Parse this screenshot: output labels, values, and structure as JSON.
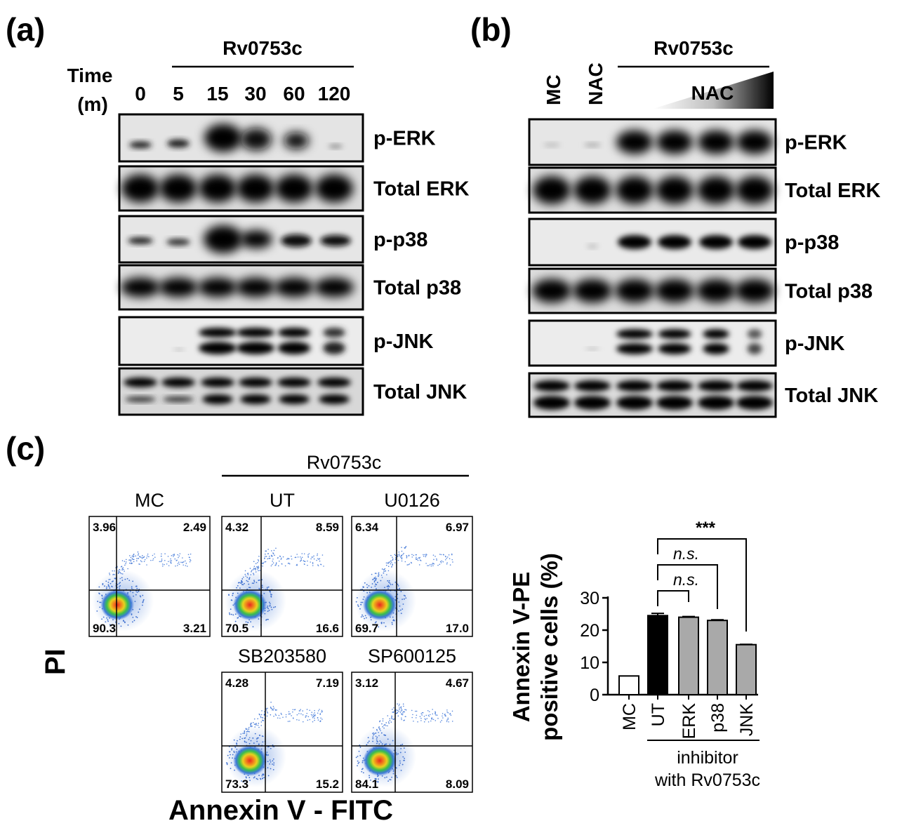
{
  "panel_a": {
    "label": "(a)",
    "treatment": "Rv0753c",
    "time_label_line1": "Time",
    "time_label_line2": "(m)",
    "times": [
      "0",
      "5",
      "15",
      "30",
      "60",
      "120"
    ],
    "blots": [
      "p-ERK",
      "Total ERK",
      "p-p38",
      "Total p38",
      "p-JNK",
      "Total JNK"
    ]
  },
  "panel_b": {
    "label": "(b)",
    "treatment": "Rv0753c",
    "lanes": [
      "MC",
      "NAC"
    ],
    "gradient_label": "NAC",
    "blots": [
      "p-ERK",
      "Total ERK",
      "p-p38",
      "Total p38",
      "p-JNK",
      "Total JNK"
    ]
  },
  "panel_c": {
    "label": "(c)",
    "treatment": "Rv0753c",
    "y_axis": "PI",
    "x_axis": "Annexin V - FITC",
    "plots": [
      {
        "title": "MC",
        "ul": "3.96",
        "ur": "2.49",
        "ll": "90.3",
        "lr": "3.21"
      },
      {
        "title": "UT",
        "ul": "4.32",
        "ur": "8.59",
        "ll": "70.5",
        "lr": "16.6"
      },
      {
        "title": "U0126",
        "ul": "6.34",
        "ur": "6.97",
        "ll": "69.7",
        "lr": "17.0"
      },
      {
        "title": "SB203580",
        "ul": "4.28",
        "ur": "7.19",
        "ll": "73.3",
        "lr": "15.2"
      },
      {
        "title": "SP600125",
        "ul": "3.12",
        "ur": "4.67",
        "ll": "84.1",
        "lr": "8.09"
      }
    ]
  },
  "chart_data": {
    "type": "bar",
    "categories": [
      "MC",
      "UT",
      "ERK",
      "p38",
      "JNK"
    ],
    "values": [
      5.8,
      24.5,
      24.0,
      23.0,
      15.5
    ],
    "errors": [
      0,
      0.7,
      0.2,
      0.2,
      0.1
    ],
    "bar_colors": [
      "#ffffff",
      "#000000",
      "#a9a9a9",
      "#a9a9a9",
      "#a9a9a9"
    ],
    "ylabel_line1": "Annexin V-PE",
    "ylabel_line2": "positive cells (%)",
    "ylim": [
      0,
      30
    ],
    "yticks": [
      "0",
      "10",
      "20",
      "30"
    ],
    "group_label_line1": "inhibitor",
    "group_label_line2": "with Rv0753c",
    "significance": [
      {
        "pair": [
          "UT",
          "ERK"
        ],
        "label": "n.s."
      },
      {
        "pair": [
          "UT",
          "p38"
        ],
        "label": "n.s."
      },
      {
        "pair": [
          "UT",
          "JNK"
        ],
        "label": "***"
      }
    ]
  }
}
